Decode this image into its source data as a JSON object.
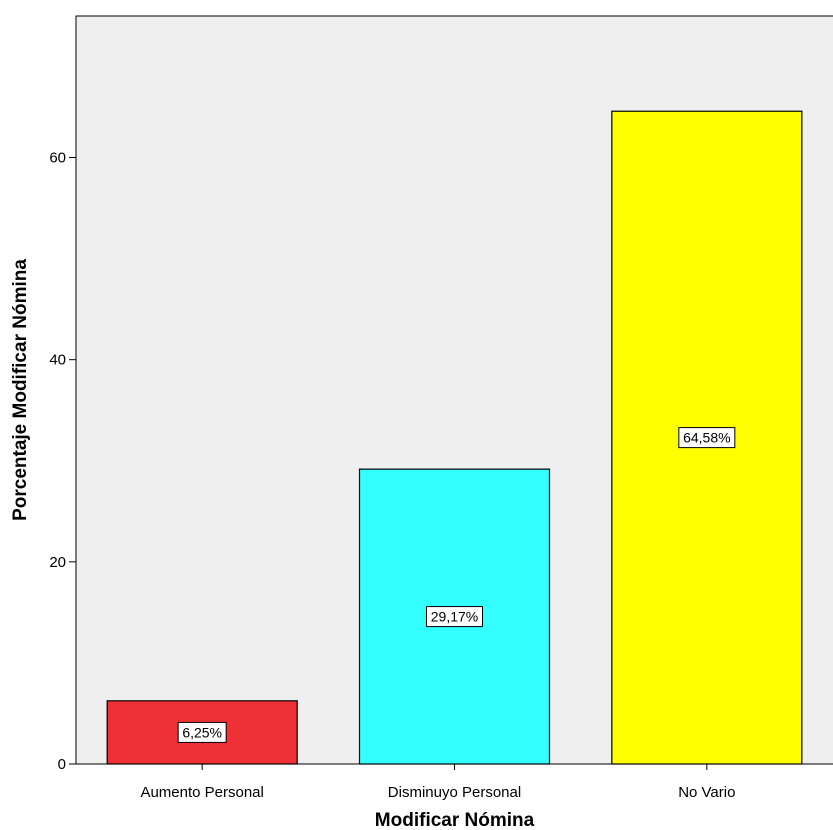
{
  "chart_data": {
    "type": "bar",
    "categories": [
      "Aumento Personal",
      "Disminuyo Personal",
      "No Vario"
    ],
    "values": [
      6.25,
      29.17,
      64.58
    ],
    "data_labels": [
      "6,25%",
      "29,17%",
      "64,58%"
    ],
    "colors": [
      "#ef3036",
      "#33ffff",
      "#ffff00"
    ],
    "plot_background": "#efefef",
    "xlabel": "Modificar Nómina",
    "ylabel": "Porcentaje Modificar Nómina",
    "ylim": [
      0,
      74
    ],
    "yticks": [
      0,
      20,
      40,
      60
    ],
    "grid": false,
    "legend": "none"
  }
}
